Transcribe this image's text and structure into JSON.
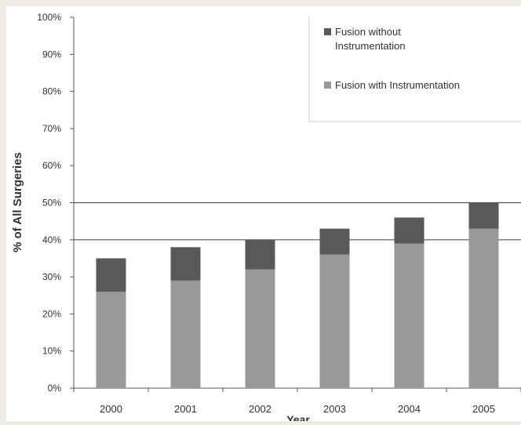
{
  "chart_data": {
    "type": "bar",
    "stacked": true,
    "categories": [
      "2000",
      "2001",
      "2002",
      "2003",
      "2004",
      "2005"
    ],
    "series": [
      {
        "name": "Fusion with Instrumentation",
        "color": "#999999",
        "values": [
          26,
          29,
          32,
          36,
          39,
          43
        ]
      },
      {
        "name": "Fusion without Instrumentation",
        "color": "#595959",
        "values": [
          9,
          9,
          8,
          7,
          7,
          7
        ]
      }
    ],
    "title": "",
    "xlabel": "Year",
    "ylabel": "% of All Surgeries",
    "ylim": [
      0,
      100
    ],
    "yticks": [
      "0%",
      "10%",
      "20%",
      "30%",
      "40%",
      "50%",
      "60%",
      "70%",
      "80%",
      "90%",
      "100%"
    ],
    "reference_lines": [
      40,
      50
    ],
    "legend": {
      "placement": "top-right",
      "entries": [
        {
          "lines": [
            "Fusion without",
            "Instrumentation"
          ],
          "color": "#595959"
        },
        {
          "lines": [
            "Fusion with Instrumentation"
          ],
          "color": "#999999"
        }
      ]
    },
    "background": "#efece6",
    "plot_background": "#ffffff"
  }
}
